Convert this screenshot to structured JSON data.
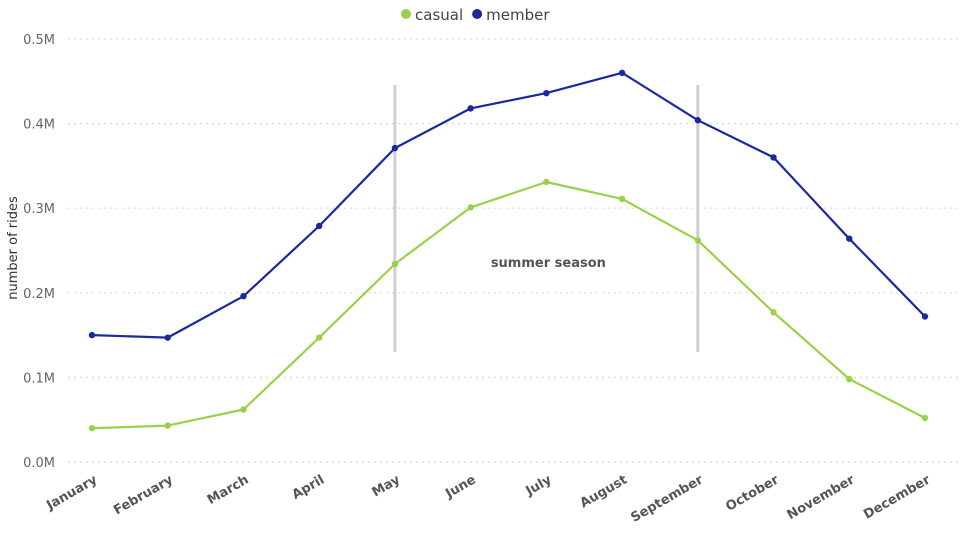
{
  "chart_data": {
    "type": "line",
    "categories": [
      "January",
      "February",
      "March",
      "April",
      "May",
      "June",
      "July",
      "August",
      "September",
      "October",
      "November",
      "December"
    ],
    "series": [
      {
        "name": "casual",
        "color": "#9ad14b",
        "values": [
          40000,
          43000,
          62000,
          147000,
          234000,
          301000,
          331000,
          311000,
          262000,
          177000,
          98000,
          52000
        ]
      },
      {
        "name": "member",
        "color": "#1a2a9c",
        "values": [
          150000,
          147000,
          196000,
          279000,
          371000,
          418000,
          436000,
          460000,
          404000,
          360000,
          264000,
          172000
        ]
      }
    ],
    "title": "",
    "xlabel": "",
    "ylabel": "number of rides",
    "ylim": [
      0,
      500000
    ],
    "yticks": [
      {
        "value": 0,
        "label": "0.0M"
      },
      {
        "value": 100000,
        "label": "0.1M"
      },
      {
        "value": 200000,
        "label": "0.2M"
      },
      {
        "value": 300000,
        "label": "0.3M"
      },
      {
        "value": 400000,
        "label": "0.4M"
      },
      {
        "value": 500000,
        "label": "0.5M"
      }
    ],
    "grid": true,
    "legend_position": "top-center",
    "annotations": [
      {
        "text": "summer season",
        "start": "May",
        "end": "September"
      }
    ]
  }
}
